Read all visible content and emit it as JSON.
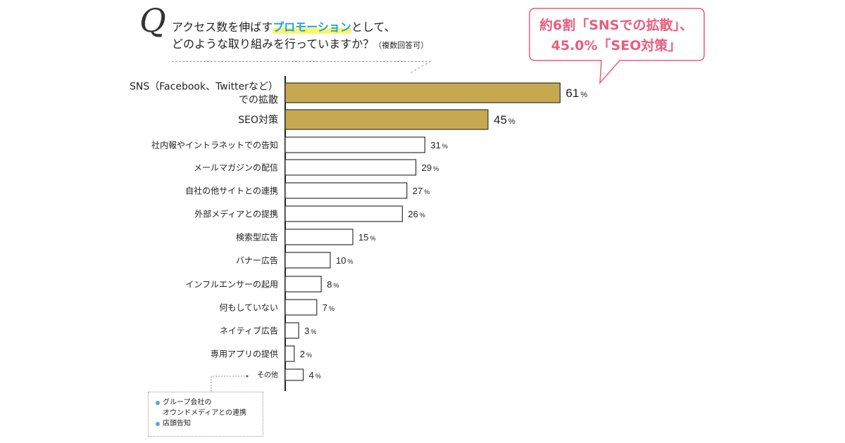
{
  "question": {
    "mark": "Q",
    "line1_before": "アクセス数を伸ばす",
    "line1_highlight": "プロモーション",
    "line1_after": "として、",
    "line2": "どのような取り組みを行っていますか？",
    "note": "（複数回答可）"
  },
  "callout": {
    "line1": "約6割「SNSでの拡散」、",
    "line2": "45.0%「SEO対策」"
  },
  "chart_data": {
    "type": "bar",
    "orientation": "horizontal",
    "categories": [
      "SNS（Facebook、Twitterなど）での拡散",
      "SEO対策",
      "社内報やイントラネットでの告知",
      "メールマガジンの配信",
      "自社の他サイトとの連携",
      "外部メディアとの提携",
      "検索型広告",
      "バナー広告",
      "インフルエンサーの起用",
      "何もしていない",
      "ネイティブ広告",
      "専用アプリの提供",
      "その他"
    ],
    "label_lines": [
      [
        "SNS（Facebook、Twitterなど）",
        "での拡散"
      ],
      [
        "SEO対策"
      ],
      [
        "社内報やイントラネットでの告知"
      ],
      [
        "メールマガジンの配信"
      ],
      [
        "自社の他サイトとの連携"
      ],
      [
        "外部メディアとの提携"
      ],
      [
        "検索型広告"
      ],
      [
        "バナー広告"
      ],
      [
        "インフルエンサーの起用"
      ],
      [
        "何もしていない"
      ],
      [
        "ネイティブ広告"
      ],
      [
        "専用アプリの提供"
      ],
      [
        "その他"
      ]
    ],
    "values": [
      61,
      45,
      31,
      29,
      27,
      26,
      15,
      10,
      8,
      7,
      3,
      2,
      4
    ],
    "unit": "%",
    "highlight_count": 2,
    "colors": {
      "highlight": "#c5a84f",
      "normal": "#ffffff",
      "border": "#333333",
      "axis": "#222222"
    },
    "xlim": [
      0,
      100
    ],
    "grid": false
  },
  "other_note": {
    "items": [
      [
        "グループ会社の",
        "オウンドメディアとの連携"
      ],
      [
        "店頭告知"
      ]
    ]
  }
}
